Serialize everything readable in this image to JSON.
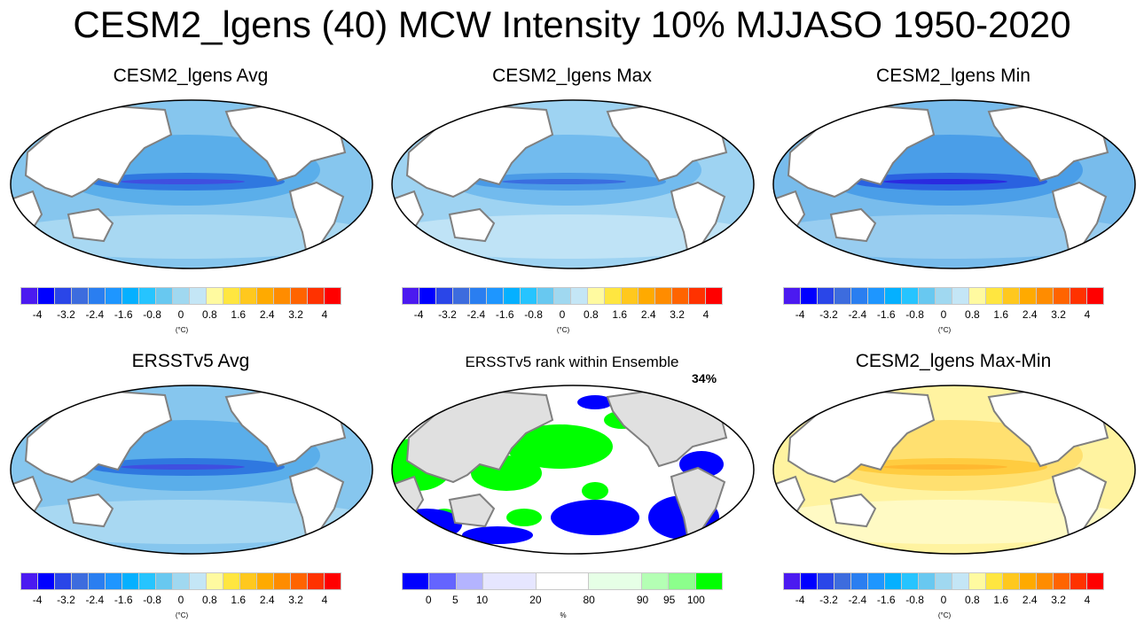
{
  "title": "CESM2_lgens (40) MCW Intensity 10% MJJASO 1950-2020",
  "colorbars": {
    "temp": {
      "colors": [
        "#4b1af0",
        "#0000ff",
        "#2a46e8",
        "#3d6cde",
        "#2a7ef0",
        "#1e96ff",
        "#05b0ff",
        "#26c4ff",
        "#68c8f0",
        "#a0d8f0",
        "#c4e6f6",
        "#fffaa0",
        "#ffe640",
        "#ffc81e",
        "#ffaa00",
        "#ff8c00",
        "#ff6400",
        "#ff3200",
        "#ff0000",
        "#d70000",
        "#d21e1e",
        "#f07878"
      ],
      "labels": [
        "-4",
        "-3.2",
        "-2.4",
        "-1.6",
        "-0.8",
        "0",
        "0.8",
        "1.6",
        "2.4",
        "3.2",
        "4"
      ],
      "unit": "(°C)"
    },
    "rank": {
      "colors": [
        "#0000ff",
        "#6464ff",
        "#b4b4ff",
        "#e6e6ff",
        "#ffffff",
        "#e6ffe6",
        "#b4ffb4",
        "#8cff8c",
        "#00ff00"
      ],
      "labels": [
        "0",
        "5",
        "10",
        "20",
        "80",
        "90",
        "95",
        "100"
      ],
      "unit": "%"
    }
  },
  "panels": [
    {
      "title": "CESM2_lgens Avg",
      "style": "avg",
      "colorbar": "temp"
    },
    {
      "title": "CESM2_lgens Max",
      "style": "max",
      "colorbar": "temp"
    },
    {
      "title": "CESM2_lgens Min",
      "style": "min",
      "colorbar": "temp"
    },
    {
      "title": "ERSSTv5 Avg",
      "style": "avg",
      "colorbar": "temp"
    },
    {
      "title": "ERSSTv5 rank within Ensemble",
      "style": "rank",
      "colorbar": "rank",
      "annotation": "34%"
    },
    {
      "title": "CESM2_lgens Max-Min",
      "style": "range",
      "colorbar": "temp"
    }
  ]
}
